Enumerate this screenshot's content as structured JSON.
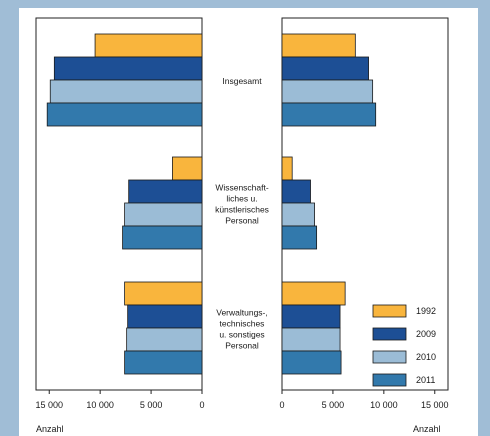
{
  "chart_data": {
    "type": "bar",
    "orientation": "horizontal",
    "layout": "back-to-back",
    "title": "",
    "categories": [
      [
        "Insgesamt"
      ],
      [
        "Wissenschaft-",
        "liches u.",
        "künstlerisches",
        "Personal"
      ],
      [
        "Verwaltungs-,",
        "technisches",
        "u. sonstiges",
        "Personal"
      ]
    ],
    "series": [
      {
        "name": "1992",
        "color": "#f9b53d",
        "left": [
          10500,
          2900,
          7600
        ],
        "right": [
          7200,
          1000,
          6200
        ]
      },
      {
        "name": "2009",
        "color": "#1d4f95",
        "left": [
          14500,
          7200,
          7300
        ],
        "right": [
          8500,
          2800,
          5700
        ]
      },
      {
        "name": "2010",
        "color": "#9bbcd6",
        "left": [
          14900,
          7600,
          7400
        ],
        "right": [
          8900,
          3200,
          5700
        ]
      },
      {
        "name": "2011",
        "color": "#3279ac",
        "left": [
          15200,
          7800,
          7600
        ],
        "right": [
          9200,
          3400,
          5800
        ]
      }
    ],
    "left_axis": {
      "ticks": [
        "15 000",
        "10 000",
        "5 000",
        "0"
      ],
      "tick_values": [
        15000,
        10000,
        5000,
        0
      ],
      "range": [
        0,
        16300
      ],
      "direction": "reversed",
      "label": "Anzahl"
    },
    "right_axis": {
      "ticks": [
        "0",
        "5 000",
        "10 000",
        "15 000"
      ],
      "tick_values": [
        0,
        5000,
        10000,
        15000
      ],
      "range": [
        0,
        16300
      ],
      "label": "Anzahl"
    },
    "legend": {
      "position": "bottom-right",
      "entries": [
        "1992",
        "2009",
        "2010",
        "2011"
      ]
    },
    "grid": false
  }
}
